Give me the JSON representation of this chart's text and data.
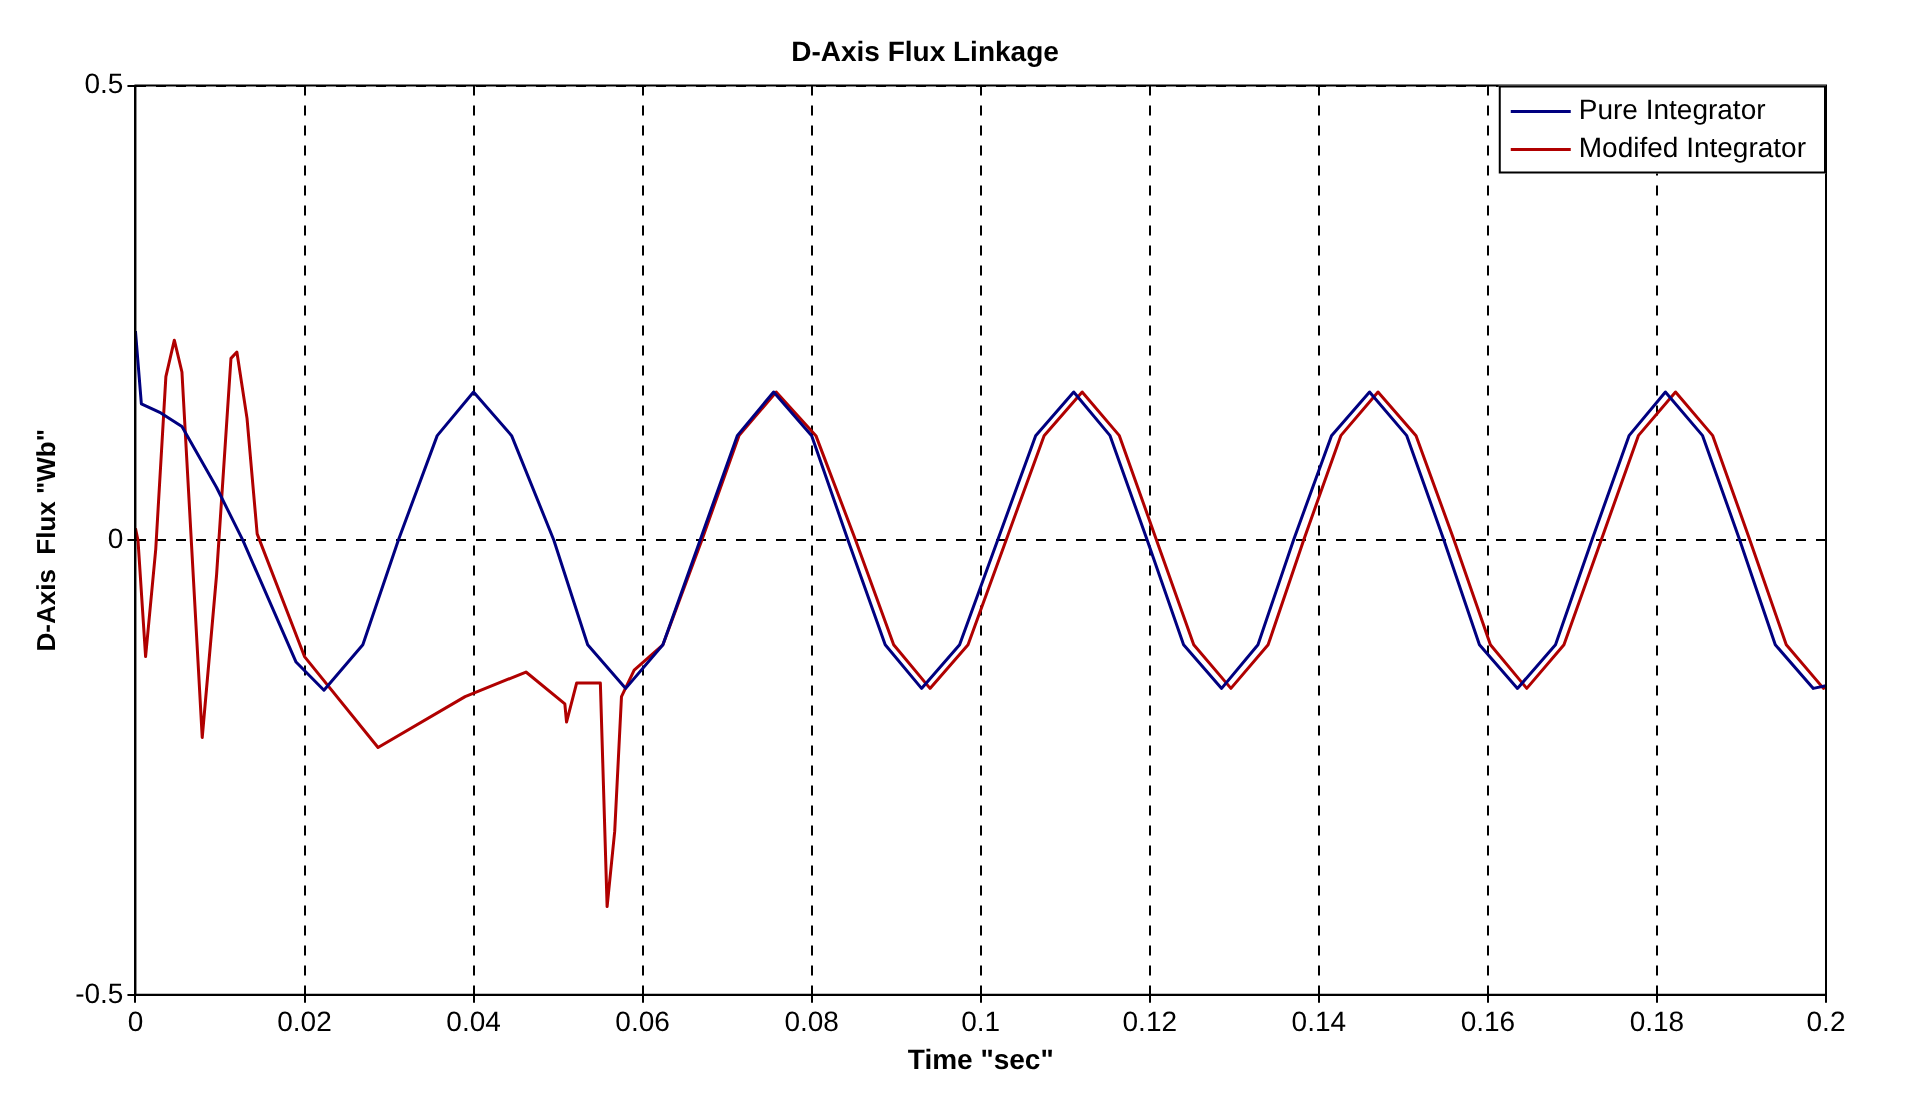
{
  "chart_data": {
    "type": "line",
    "title": "D-Axis Flux Linkage",
    "xlabel": "Time \"sec\"",
    "ylabel": "D-Axis  Flux \"Wb\"",
    "xlim": [
      0,
      0.2
    ],
    "xticks": [
      0,
      0.02,
      0.04,
      0.06,
      0.08,
      0.1,
      0.12,
      0.14,
      0.16,
      0.18,
      0.2
    ],
    "ylim": [
      -0.5,
      0.5
    ],
    "yticks": [
      -0.5,
      0,
      0.5
    ],
    "grid": true,
    "legend": "top right",
    "line_style": "solid",
    "marker": "none",
    "series": [
      {
        "name": "Pure Integrator",
        "color": "#000080",
        "x": [
          0,
          0.0007,
          0.003,
          0.0055,
          0.0096,
          0.0127,
          0.019,
          0.0223,
          0.0269,
          0.0311,
          0.0357,
          0.04,
          0.0445,
          0.0495,
          0.0535,
          0.058,
          0.0624,
          0.0668,
          0.0712,
          0.0755,
          0.08,
          0.0843,
          0.0887,
          0.093,
          0.0975,
          0.102,
          0.1065,
          0.111,
          0.1153,
          0.1197,
          0.124,
          0.1285,
          0.1328,
          0.137,
          0.1415,
          0.146,
          0.1504,
          0.1548,
          0.159,
          0.1635,
          0.168,
          0.1723,
          0.1767,
          0.181,
          0.1854,
          0.1898,
          0.194,
          0.1985,
          0.2
        ],
        "values": [
          0.23,
          0.15,
          0.14,
          0.125,
          0.058,
          0,
          -0.134,
          -0.165,
          -0.115,
          0,
          0.115,
          0.163,
          0.115,
          0,
          -0.115,
          -0.163,
          -0.115,
          0,
          0.115,
          0.163,
          0.115,
          0,
          -0.115,
          -0.163,
          -0.115,
          0,
          0.115,
          0.163,
          0.115,
          0,
          -0.115,
          -0.163,
          -0.115,
          0,
          0.115,
          0.163,
          0.115,
          0,
          -0.115,
          -0.163,
          -0.115,
          0,
          0.115,
          0.163,
          0.115,
          0,
          -0.115,
          -0.163,
          -0.16
        ]
      },
      {
        "name": "Modifed Integrator",
        "color": "#b00000",
        "x": [
          0,
          0.0003,
          0.0012,
          0.0024,
          0.0036,
          0.0046,
          0.0055,
          0.0079,
          0.0096,
          0.0113,
          0.012,
          0.0132,
          0.0144,
          0.02,
          0.0287,
          0.039,
          0.0462,
          0.0508,
          0.051,
          0.0522,
          0.055,
          0.0558,
          0.0567,
          0.0575,
          0.059,
          0.0624,
          0.067,
          0.0714,
          0.0758,
          0.0805,
          0.0852,
          0.0897,
          0.094,
          0.0985,
          0.103,
          0.1075,
          0.112,
          0.1164,
          0.1208,
          0.1252,
          0.1296,
          0.134,
          0.1382,
          0.1426,
          0.147,
          0.1515,
          0.156,
          0.1603,
          0.1646,
          0.169,
          0.1734,
          0.1778,
          0.1822,
          0.1866,
          0.191,
          0.1953,
          0.1997,
          0.2
        ],
        "values": [
          0.013,
          0,
          -0.128,
          -0.01,
          0.18,
          0.22,
          0.185,
          -0.217,
          -0.038,
          0.2,
          0.207,
          0.134,
          0.007,
          -0.128,
          -0.228,
          -0.172,
          -0.145,
          -0.18,
          -0.2,
          -0.157,
          -0.157,
          -0.403,
          -0.32,
          -0.172,
          -0.143,
          -0.115,
          0,
          0.115,
          0.163,
          0.115,
          0,
          -0.115,
          -0.163,
          -0.115,
          0,
          0.115,
          0.163,
          0.115,
          0,
          -0.115,
          -0.163,
          -0.115,
          0,
          0.115,
          0.163,
          0.115,
          0,
          -0.115,
          -0.163,
          -0.115,
          0,
          0.115,
          0.163,
          0.115,
          0,
          -0.115,
          -0.163,
          -0.16
        ]
      }
    ]
  }
}
